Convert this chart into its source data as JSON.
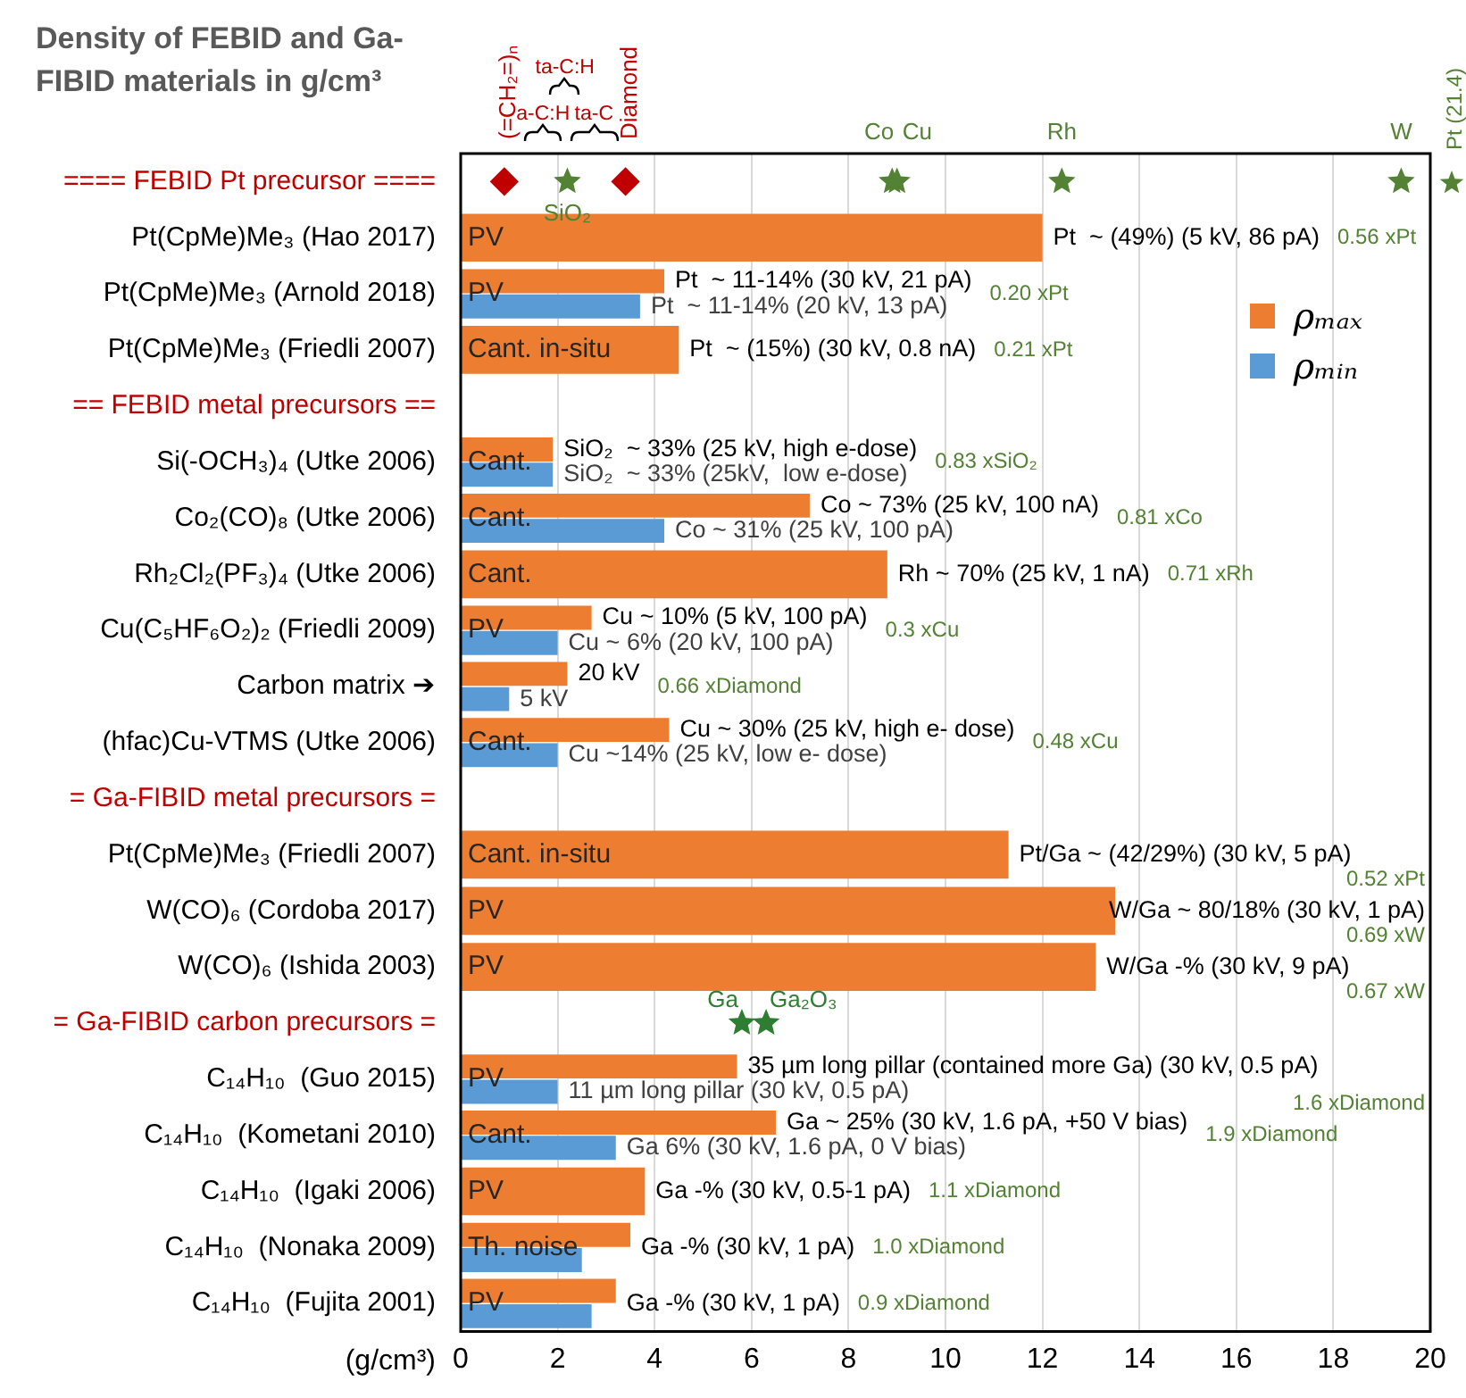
{
  "chart_data": {
    "type": "bar",
    "orientation": "horizontal",
    "title": "Density of FEBID and Ga-FIBID materials in g/cm³",
    "xlabel": "(g/cm³)",
    "categories": [
      "==== FEBID Pt precursor ====",
      "Pt(CpMe)Me₃ (Hao 2017)",
      "Pt(CpMe)Me₃ (Arnold 2018)",
      "Pt(CpMe)Me₃ (Friedli 2007)",
      "== FEBID metal precursors ==",
      "Si(-OCH₃)₄ (Utke 2006)",
      "Co₂(CO)₈ (Utke 2006)",
      "Rh₂Cl₂(PF₃)₄ (Utke 2006)",
      "Cu(C₅HF₆O₂)₂ (Friedli 2009)",
      "Carbon matrix ➔",
      "(hfac)Cu-VTMS (Utke 2006)",
      "= Ga-FIBID metal precursors =",
      "Pt(CpMe)Me₃ (Friedli 2007)",
      "W(CO)₆ (Cordoba 2017)",
      "W(CO)₆ (Ishida 2003)",
      "= Ga-FIBID carbon precursors =",
      "C₁₄H₁₀  (Guo 2015)",
      "C₁₄H₁₀  (Kometani 2010)",
      "C₁₄H₁₀  (Igaki 2006)",
      "C₁₄H₁₀  (Nonaka 2009)",
      "C₁₄H₁₀  (Fujita 2001)"
    ],
    "series": [
      {
        "name": "ρₘₐₓ",
        "color": "#ed7d31",
        "values": [
          null,
          12.0,
          4.2,
          4.5,
          null,
          1.9,
          7.2,
          8.8,
          2.7,
          2.2,
          4.3,
          null,
          11.3,
          13.5,
          13.1,
          null,
          5.7,
          6.5,
          3.8,
          3.5,
          3.2
        ]
      },
      {
        "name": "ρₘᵢₙ",
        "color": "#5b9bd5",
        "values": [
          null,
          null,
          3.7,
          null,
          null,
          1.9,
          4.2,
          null,
          2.0,
          1.0,
          2.0,
          null,
          null,
          null,
          null,
          null,
          2.0,
          3.2,
          null,
          2.5,
          2.7
        ]
      },
      {
        "type": "scatter",
        "name": "SiO₂",
        "color": "#548235",
        "marker": "star",
        "values": [
          2.2,
          null,
          null,
          null,
          null,
          null,
          null,
          null,
          null,
          null,
          null,
          null,
          null,
          null,
          null,
          null,
          null,
          null,
          null,
          null,
          null
        ]
      },
      {
        "type": "scatter",
        "name": "Co",
        "color": "#548235",
        "marker": "star",
        "values": [
          8.9,
          null,
          null,
          null,
          null,
          null,
          null,
          null,
          null,
          null,
          null,
          null,
          null,
          null,
          null,
          null,
          null,
          null,
          null,
          null,
          null
        ]
      },
      {
        "type": "scatter",
        "name": "Cu",
        "color": "#548235",
        "marker": "star",
        "values": [
          9.0,
          null,
          null,
          null,
          null,
          null,
          null,
          null,
          null,
          null,
          null,
          null,
          null,
          null,
          null,
          null,
          null,
          null,
          null,
          null,
          null
        ]
      },
      {
        "type": "scatter",
        "name": "Rh",
        "color": "#548235",
        "marker": "star",
        "values": [
          12.4,
          null,
          null,
          null,
          null,
          null,
          null,
          null,
          null,
          null,
          null,
          null,
          null,
          null,
          null,
          null,
          null,
          null,
          null,
          null,
          null
        ]
      },
      {
        "type": "scatter",
        "name": "W",
        "color": "#548235",
        "marker": "star",
        "values": [
          19.4,
          null,
          null,
          null,
          null,
          null,
          null,
          null,
          null,
          null,
          null,
          null,
          null,
          null,
          null,
          null,
          null,
          null,
          null,
          null,
          null
        ]
      },
      {
        "type": "scatter",
        "name": "(=CH₂=)ₙ",
        "color": "#c00000",
        "marker": "diamond",
        "values": [
          0.9,
          null,
          null,
          null,
          null,
          null,
          null,
          null,
          null,
          null,
          null,
          null,
          null,
          null,
          null,
          null,
          null,
          null,
          null,
          null,
          null
        ]
      },
      {
        "type": "scatter",
        "name": "Diamond",
        "color": "#c00000",
        "marker": "diamond",
        "values": [
          3.4,
          null,
          null,
          null,
          null,
          null,
          null,
          null,
          null,
          null,
          null,
          null,
          null,
          null,
          null,
          null,
          null,
          null,
          null,
          null,
          null
        ]
      },
      {
        "type": "scatter",
        "name": "Ga",
        "color": "#2e7d32",
        "marker": "star",
        "values": [
          null,
          null,
          null,
          null,
          null,
          null,
          null,
          null,
          null,
          null,
          null,
          null,
          null,
          null,
          null,
          5.8,
          null,
          null,
          null,
          null,
          null
        ]
      },
      {
        "type": "scatter",
        "name": "Ga₂O₃",
        "color": "#2e7d32",
        "marker": "star",
        "values": [
          null,
          null,
          null,
          null,
          null,
          null,
          null,
          null,
          null,
          null,
          null,
          null,
          null,
          null,
          null,
          6.3,
          null,
          null,
          null,
          null,
          null
        ]
      }
    ],
    "xlim": [
      0,
      20
    ],
    "xticks": [
      0,
      2,
      4,
      6,
      8,
      10,
      12,
      14,
      16,
      18,
      20
    ],
    "grid": "x",
    "legend": "top right",
    "annotations": [
      "PV",
      "PV",
      "Cant. in-situ",
      "Cant.",
      "Cant.",
      "Cant.",
      "PV",
      "Cant.",
      "Cant. in-situ",
      "PV",
      "PV",
      "PV",
      "Cant.",
      "PV",
      "Th. noise",
      "PV",
      "0.56 xPt",
      "0.20 xPt",
      "0.21 xPt",
      "0.83 xSiO₂",
      "0.81 xCo",
      "0.71 xRh",
      "0.3 xCu",
      "0.66 xDiamond",
      "0.48 xCu",
      "0.52 xPt",
      "0.69 xW",
      "0.67 xW",
      "1.6 xDiamond",
      "1.9 xDiamond",
      "1.1 xDiamond",
      "1.0 xDiamond",
      "0.9 xDiamond",
      "a-C:H",
      "ta-C",
      "ta-C:H",
      "Pt (21.4)",
      "Pt  ~ (49%) (5 kV, 86 pA)",
      "Pt  ~ 11-14% (30 kV, 21 pA)",
      "Pt  ~ (15%) (30 kV, 0.8 nA)",
      "SiO₂  ~ 33% (25 kV, high e-dose)",
      "Co ~ 73% (25 kV, 100 nA)",
      "Rh ~ 70% (25 kV, 1 nA)",
      "Cu ~ 10% (5 kV, 100 pA)",
      "20 kV",
      "Cu ~ 30% (25 kV, high e- dose)",
      "Pt/Ga ~ (42/29%) (30 kV, 5 pA)",
      "W/Ga ~ 80/18% (30 kV, 1 pA)",
      "W/Ga -% (30 kV, 9 pA)",
      "35 µm long pillar (contained more Ga) (30 kV, 0.5 pA)",
      "Ga ~ 25% (30 kV, 1.6 pA, +50 V bias)",
      "Ga -% (30 kV, 0.5-1 pA)",
      "Ga -% (30 kV, 1 pA)",
      "Ga -% (30 kV, 1 pA)",
      "Pt  ~ 11-14% (20 kV, 13 pA)",
      "SiO₂  ~ 33% (25kV,  low e-dose)",
      "Co ~ 31% (25 kV, 100 pA)",
      "Cu ~ 6% (20 kV, 100 pA)",
      "5 kV",
      "Cu ~14% (25 kV, low e- dose)",
      "11 µm long pillar (30 kV, 0.5 pA)",
      "Ga 6% (30 kV, 1.6 pA, 0 V bias)"
    ]
  }
}
